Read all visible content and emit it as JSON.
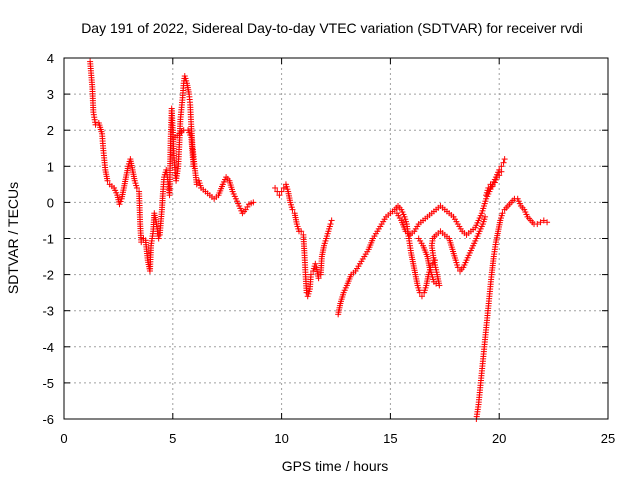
{
  "chart_data": {
    "type": "scatter",
    "title": "Day 191 of 2022, Sidereal Day-to-day VTEC variation (SDTVAR) for receiver rvdi",
    "xlabel": "GPS time / hours",
    "ylabel": "SDTVAR / TECUs",
    "xlim": [
      0,
      25
    ],
    "ylim": [
      -6,
      4
    ],
    "xticks": [
      "0",
      "5",
      "10",
      "15",
      "20",
      "25"
    ],
    "yticks": [
      "4",
      "3",
      "2",
      "1",
      "0",
      "-1",
      "-2",
      "-3",
      "-4",
      "-5",
      "-6"
    ],
    "grid": true,
    "marker": "+",
    "color": "#ff0000",
    "series": [
      {
        "name": "SDTVAR",
        "segments": [
          [
            [
              1.2,
              3.9
            ],
            [
              1.3,
              3.2
            ],
            [
              1.35,
              2.5
            ],
            [
              1.45,
              2.15
            ],
            [
              1.6,
              2.2
            ],
            [
              1.75,
              1.9
            ],
            [
              1.8,
              1.5
            ],
            [
              1.9,
              0.9
            ],
            [
              2.0,
              0.6
            ],
            [
              2.1,
              0.5
            ],
            [
              2.3,
              0.4
            ],
            [
              2.45,
              0.2
            ],
            [
              2.55,
              -0.05
            ],
            [
              2.65,
              0.1
            ],
            [
              2.75,
              0.4
            ],
            [
              2.85,
              0.7
            ],
            [
              2.95,
              1.0
            ],
            [
              3.05,
              1.2
            ],
            [
              3.15,
              0.9
            ],
            [
              3.25,
              0.6
            ],
            [
              3.35,
              0.4
            ],
            [
              3.45,
              0.3
            ],
            [
              3.5,
              -0.6
            ],
            [
              3.55,
              -1.1
            ],
            [
              3.65,
              -1.0
            ],
            [
              3.75,
              -1.05
            ],
            [
              3.85,
              -1.6
            ],
            [
              3.95,
              -1.9
            ],
            [
              4.0,
              -1.2
            ],
            [
              4.1,
              -0.8
            ],
            [
              4.15,
              -0.3
            ],
            [
              4.25,
              -0.6
            ],
            [
              4.35,
              -1.0
            ],
            [
              4.4,
              -0.9
            ],
            [
              4.5,
              -0.2
            ],
            [
              4.55,
              0.3
            ],
            [
              4.6,
              0.7
            ],
            [
              4.7,
              0.9
            ],
            [
              4.8,
              0.5
            ],
            [
              4.85,
              0.2
            ],
            [
              4.9,
              1.7
            ],
            [
              4.95,
              2.6
            ],
            [
              5.0,
              2.0
            ],
            [
              5.05,
              1.3
            ],
            [
              5.1,
              0.9
            ],
            [
              5.15,
              0.6
            ],
            [
              5.25,
              1.0
            ],
            [
              5.3,
              1.6
            ],
            [
              5.35,
              2.3
            ],
            [
              5.45,
              2.9
            ],
            [
              5.5,
              3.3
            ],
            [
              5.55,
              3.5
            ],
            [
              5.65,
              3.3
            ],
            [
              5.75,
              3.0
            ],
            [
              5.8,
              2.7
            ],
            [
              5.85,
              2.1
            ],
            [
              5.9,
              1.6
            ],
            [
              6.0,
              1.0
            ],
            [
              6.1,
              0.5
            ],
            [
              6.2,
              0.6
            ],
            [
              6.3,
              0.4
            ],
            [
              6.5,
              0.3
            ],
            [
              6.7,
              0.2
            ],
            [
              6.9,
              0.1
            ],
            [
              7.1,
              0.2
            ],
            [
              7.3,
              0.5
            ],
            [
              7.45,
              0.7
            ],
            [
              7.6,
              0.6
            ],
            [
              7.75,
              0.3
            ],
            [
              7.9,
              0.1
            ],
            [
              8.05,
              -0.1
            ],
            [
              8.2,
              -0.3
            ],
            [
              8.35,
              -0.2
            ],
            [
              8.5,
              -0.05
            ],
            [
              8.7,
              0.0
            ]
          ],
          [
            [
              5.1,
              1.8
            ],
            [
              5.3,
              1.9
            ],
            [
              5.5,
              2.0
            ],
            [
              5.7,
              2.0
            ],
            [
              5.85,
              1.8
            ],
            [
              5.95,
              1.0
            ]
          ],
          [
            [
              9.7,
              0.4
            ],
            [
              9.8,
              0.3
            ],
            [
              9.9,
              0.2
            ],
            [
              10.0,
              0.3
            ],
            [
              10.1,
              0.4
            ],
            [
              10.2,
              0.5
            ],
            [
              10.3,
              0.3
            ],
            [
              10.4,
              0.0
            ],
            [
              10.5,
              -0.2
            ],
            [
              10.6,
              -0.3
            ],
            [
              10.7,
              -0.6
            ],
            [
              10.8,
              -0.8
            ],
            [
              10.9,
              -0.8
            ],
            [
              11.0,
              -0.9
            ],
            [
              11.05,
              -1.4
            ],
            [
              11.1,
              -2.0
            ],
            [
              11.15,
              -2.5
            ],
            [
              11.2,
              -2.6
            ],
            [
              11.3,
              -2.4
            ],
            [
              11.35,
              -2.0
            ],
            [
              11.45,
              -1.9
            ],
            [
              11.55,
              -1.7
            ],
            [
              11.6,
              -1.8
            ],
            [
              11.7,
              -2.1
            ],
            [
              11.8,
              -2.0
            ],
            [
              11.85,
              -1.5
            ],
            [
              11.95,
              -1.2
            ],
            [
              12.05,
              -1.0
            ],
            [
              12.15,
              -0.8
            ],
            [
              12.25,
              -0.6
            ],
            [
              12.3,
              -0.5
            ]
          ],
          [
            [
              12.6,
              -3.1
            ],
            [
              12.7,
              -2.8
            ],
            [
              12.85,
              -2.5
            ],
            [
              13.0,
              -2.3
            ],
            [
              13.2,
              -2.0
            ],
            [
              13.4,
              -1.9
            ],
            [
              13.6,
              -1.7
            ],
            [
              13.8,
              -1.5
            ],
            [
              14.0,
              -1.3
            ],
            [
              14.2,
              -1.0
            ],
            [
              14.4,
              -0.8
            ],
            [
              14.6,
              -0.6
            ],
            [
              14.8,
              -0.4
            ],
            [
              15.0,
              -0.3
            ],
            [
              15.2,
              -0.2
            ],
            [
              15.35,
              -0.1
            ],
            [
              15.5,
              -0.2
            ],
            [
              15.65,
              -0.4
            ],
            [
              15.75,
              -0.6
            ],
            [
              15.85,
              -1.0
            ],
            [
              15.95,
              -1.4
            ],
            [
              16.05,
              -1.7
            ],
            [
              16.15,
              -2.0
            ],
            [
              16.25,
              -2.3
            ],
            [
              16.35,
              -2.5
            ],
            [
              16.45,
              -2.6
            ],
            [
              16.55,
              -2.5
            ],
            [
              16.65,
              -2.3
            ],
            [
              16.75,
              -2.0
            ],
            [
              16.85,
              -1.8
            ],
            [
              16.95,
              -1.7
            ],
            [
              17.05,
              -1.6
            ]
          ],
          [
            [
              15.3,
              -0.3
            ],
            [
              15.5,
              -0.5
            ],
            [
              15.7,
              -0.8
            ],
            [
              15.9,
              -0.9
            ],
            [
              16.1,
              -0.8
            ],
            [
              16.3,
              -0.6
            ],
            [
              16.5,
              -0.5
            ],
            [
              16.7,
              -0.4
            ],
            [
              16.9,
              -0.3
            ],
            [
              17.1,
              -0.2
            ],
            [
              17.3,
              -0.1
            ],
            [
              17.5,
              -0.2
            ],
            [
              17.7,
              -0.3
            ],
            [
              17.9,
              -0.4
            ],
            [
              18.1,
              -0.6
            ],
            [
              18.3,
              -0.8
            ],
            [
              18.5,
              -0.9
            ],
            [
              18.7,
              -0.8
            ],
            [
              18.9,
              -0.7
            ],
            [
              19.05,
              -0.5
            ],
            [
              19.2,
              -0.3
            ],
            [
              19.3,
              -0.1
            ],
            [
              19.4,
              0.1
            ],
            [
              19.55,
              0.3
            ],
            [
              19.7,
              0.5
            ],
            [
              19.85,
              0.7
            ],
            [
              20.0,
              0.9
            ],
            [
              20.1,
              1.0
            ],
            [
              20.2,
              1.1
            ],
            [
              20.25,
              1.2
            ]
          ],
          [
            [
              16.3,
              -1.0
            ],
            [
              16.5,
              -1.2
            ],
            [
              16.7,
              -1.5
            ],
            [
              16.8,
              -1.8
            ],
            [
              16.9,
              -2.0
            ],
            [
              17.0,
              -2.2
            ],
            [
              17.1,
              -2.25
            ],
            [
              17.25,
              -2.3
            ],
            [
              17.15,
              -2.0
            ],
            [
              17.0,
              -1.6
            ],
            [
              16.9,
              -1.2
            ],
            [
              16.95,
              -1.0
            ],
            [
              17.1,
              -0.9
            ],
            [
              17.3,
              -0.8
            ],
            [
              17.5,
              -0.9
            ],
            [
              17.7,
              -1.0
            ],
            [
              17.85,
              -1.3
            ],
            [
              18.0,
              -1.6
            ],
            [
              18.1,
              -1.8
            ],
            [
              18.2,
              -1.9
            ],
            [
              18.35,
              -1.8
            ],
            [
              18.5,
              -1.6
            ],
            [
              18.65,
              -1.4
            ],
            [
              18.8,
              -1.2
            ],
            [
              18.95,
              -1.0
            ],
            [
              19.1,
              -0.8
            ],
            [
              19.25,
              -0.6
            ],
            [
              19.35,
              -0.4
            ]
          ],
          [
            [
              18.95,
              -6.0
            ],
            [
              19.05,
              -5.6
            ],
            [
              19.15,
              -5.0
            ],
            [
              19.25,
              -4.4
            ],
            [
              19.35,
              -3.8
            ],
            [
              19.45,
              -3.2
            ],
            [
              19.55,
              -2.6
            ],
            [
              19.65,
              -2.0
            ],
            [
              19.75,
              -1.5
            ],
            [
              19.85,
              -1.1
            ],
            [
              19.95,
              -0.8
            ],
            [
              20.05,
              -0.5
            ],
            [
              20.15,
              -0.3
            ],
            [
              20.25,
              -0.2
            ],
            [
              20.4,
              -0.1
            ],
            [
              20.55,
              0.0
            ],
            [
              20.7,
              0.1
            ],
            [
              20.85,
              0.1
            ],
            [
              21.0,
              -0.1
            ],
            [
              21.15,
              -0.2
            ],
            [
              21.3,
              -0.4
            ],
            [
              21.45,
              -0.5
            ],
            [
              21.6,
              -0.6
            ],
            [
              21.75,
              -0.6
            ],
            [
              21.9,
              -0.55
            ],
            [
              22.05,
              -0.5
            ],
            [
              22.2,
              -0.55
            ]
          ],
          [
            [
              19.4,
              0.2
            ],
            [
              19.5,
              0.4
            ],
            [
              19.6,
              0.5
            ],
            [
              19.7,
              0.45
            ],
            [
              19.8,
              0.55
            ],
            [
              19.9,
              0.7
            ],
            [
              20.0,
              0.75
            ],
            [
              20.1,
              0.85
            ]
          ]
        ]
      }
    ]
  }
}
